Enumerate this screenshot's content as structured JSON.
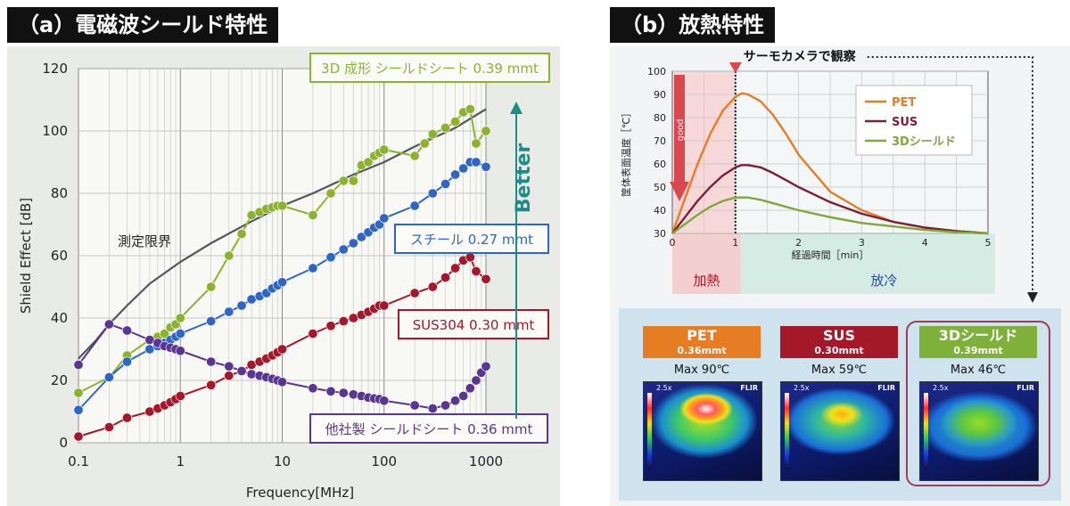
{
  "panel_a": {
    "title": "（a）電磁波シールド特性",
    "better_label": "Better",
    "limit_label": "測定限界"
  },
  "panel_b": {
    "title": "（b）放熱特性",
    "thermo_label": "サーモカメラで観察",
    "good_label": "good",
    "heating_label": "加熱",
    "cooling_label": "放冷",
    "cards": [
      {
        "name": "PET",
        "thickness": "0.36mmt",
        "max": "Max 90℃",
        "color": "#e67c24"
      },
      {
        "name": "SUS",
        "thickness": "0.30mmt",
        "max": "Max 59℃",
        "color": "#a4182a"
      },
      {
        "name": "3Dシールド",
        "thickness": "0.39mmt",
        "max": "Max 46℃",
        "color": "#7fb13a"
      }
    ],
    "flir_label": "FLIR",
    "zoom_label": "2.5x"
  },
  "chart_data": [
    {
      "type": "line",
      "title": "電磁波シールド特性",
      "xlabel": "Frequency[MHz]",
      "ylabel": "Shield Effect [dB]",
      "xscale": "log",
      "xlim": [
        0.1,
        1000
      ],
      "ylim": [
        0,
        120
      ],
      "xticks": [
        0.1,
        1,
        10,
        100,
        1000
      ],
      "xtick_labels": [
        "0.1",
        "1",
        "10",
        "100",
        "1000"
      ],
      "yticks": [
        0,
        20,
        40,
        60,
        80,
        100,
        120
      ],
      "grid": true,
      "series": [
        {
          "name": "測定限界",
          "color": "#555560",
          "marker": false,
          "x": [
            0.1,
            0.15,
            0.2,
            0.3,
            0.5,
            1,
            2,
            5,
            10,
            20,
            50,
            100,
            200,
            500,
            1000
          ],
          "y": [
            27,
            33,
            38,
            44,
            51,
            58,
            64,
            71,
            76,
            80,
            86,
            90,
            95,
            101,
            107
          ]
        },
        {
          "name": "3D 成形 シールドシート 0.39 mmt",
          "color": "#8db230",
          "marker": true,
          "x": [
            0.1,
            0.2,
            0.3,
            0.5,
            0.6,
            0.7,
            0.8,
            0.9,
            1,
            2,
            3,
            4,
            5,
            6,
            7,
            8,
            9,
            10,
            20,
            30,
            40,
            50,
            60,
            70,
            80,
            90,
            100,
            200,
            250,
            300,
            400,
            500,
            600,
            700,
            800,
            1000
          ],
          "y": [
            16,
            21,
            28,
            33,
            34,
            35,
            37,
            38,
            40,
            50,
            60,
            67,
            73,
            74,
            75,
            75.5,
            76,
            76,
            73,
            80,
            84,
            84,
            89,
            90,
            92,
            93,
            94,
            92,
            96,
            99,
            101,
            103,
            106,
            107,
            96,
            100
          ]
        },
        {
          "name": "スチール 0.27 mmt",
          "color": "#2f66c6",
          "marker": true,
          "x": [
            0.1,
            0.2,
            0.3,
            0.5,
            0.6,
            0.7,
            0.8,
            0.9,
            1,
            2,
            3,
            4,
            5,
            6,
            7,
            8,
            9,
            10,
            20,
            30,
            40,
            50,
            60,
            70,
            80,
            90,
            100,
            200,
            300,
            400,
            500,
            600,
            700,
            800,
            1000
          ],
          "y": [
            10.5,
            21,
            26,
            30,
            31,
            32,
            33,
            34,
            35,
            39,
            42,
            44,
            46,
            47,
            48,
            49.5,
            50.5,
            51.5,
            56,
            59.5,
            62,
            64,
            66,
            67.5,
            69,
            70,
            72,
            76,
            80,
            83,
            86,
            88,
            90,
            90,
            88.5
          ]
        },
        {
          "name": "SUS304 0.30 mmt",
          "color": "#a4182a",
          "marker": true,
          "x": [
            0.1,
            0.2,
            0.3,
            0.5,
            0.6,
            0.7,
            0.8,
            0.9,
            1,
            2,
            3,
            4,
            5,
            6,
            7,
            8,
            9,
            10,
            20,
            30,
            40,
            50,
            60,
            70,
            80,
            90,
            100,
            200,
            300,
            400,
            500,
            600,
            700,
            800,
            1000
          ],
          "y": [
            2,
            5,
            8,
            10,
            11,
            12,
            13,
            14,
            15,
            18.5,
            21.5,
            23,
            25,
            26,
            27,
            28,
            29,
            30,
            35,
            37.5,
            39,
            40,
            41,
            42,
            43,
            44,
            44,
            48,
            50,
            53,
            56,
            58.5,
            59.5,
            55,
            52.5
          ]
        },
        {
          "name": "他社製 シールドシート 0.36 mmt",
          "color": "#5a3592",
          "marker": true,
          "x": [
            0.1,
            0.2,
            0.3,
            0.5,
            0.6,
            0.7,
            0.8,
            0.9,
            1,
            2,
            3,
            4,
            5,
            6,
            7,
            8,
            9,
            10,
            20,
            30,
            40,
            50,
            60,
            70,
            80,
            90,
            100,
            200,
            300,
            400,
            500,
            600,
            700,
            800,
            900,
            1000
          ],
          "y": [
            25,
            38,
            36,
            33,
            32,
            31,
            30.5,
            30,
            29.5,
            26,
            24.5,
            23,
            22,
            21.5,
            21,
            20.5,
            20,
            19.5,
            17.5,
            16.5,
            16,
            15.5,
            15,
            14.5,
            14.2,
            14,
            13.5,
            12,
            11,
            12,
            13.5,
            15,
            17.5,
            20,
            22.5,
            24.5
          ]
        }
      ]
    },
    {
      "type": "line",
      "title": "放熱特性",
      "xlabel": "経過時間［min］",
      "ylabel": "筐体表面温度［℃］",
      "xlim": [
        0,
        5
      ],
      "ylim": [
        30,
        100
      ],
      "xticks": [
        0,
        1,
        2,
        3,
        4,
        5
      ],
      "yticks": [
        30,
        40,
        50,
        60,
        70,
        80,
        90,
        100
      ],
      "grid": true,
      "legend": "top-right",
      "series": [
        {
          "name": "PET",
          "color": "#e67c24",
          "x": [
            0,
            0.2,
            0.4,
            0.6,
            0.8,
            1.0,
            1.1,
            1.2,
            1.4,
            1.6,
            1.8,
            2.0,
            2.5,
            3.0,
            3.5,
            4.0,
            4.5,
            5.0
          ],
          "y": [
            30,
            45,
            60,
            73,
            83,
            89,
            90.5,
            90,
            87,
            81,
            73,
            64,
            48,
            40,
            35,
            32.5,
            31,
            30
          ]
        },
        {
          "name": "SUS",
          "color": "#7a1f35",
          "x": [
            0,
            0.2,
            0.4,
            0.6,
            0.8,
            1.0,
            1.1,
            1.2,
            1.4,
            1.6,
            1.8,
            2.0,
            2.5,
            3.0,
            3.5,
            4.0,
            4.5,
            5.0
          ],
          "y": [
            30,
            37,
            44,
            50,
            55,
            58.5,
            59.5,
            59.5,
            58.5,
            56,
            53,
            50,
            43.5,
            38.5,
            35,
            32.5,
            31,
            30
          ]
        },
        {
          "name": "3Dシールド",
          "color": "#7fa83a",
          "x": [
            0,
            0.2,
            0.4,
            0.6,
            0.8,
            1.0,
            1.2,
            1.4,
            1.6,
            2.0,
            2.5,
            3.0,
            3.5,
            4.0,
            4.5,
            5.0
          ],
          "y": [
            30,
            34,
            38,
            41.5,
            44,
            45.5,
            45.5,
            44.5,
            43,
            40,
            37,
            34.5,
            33,
            31.5,
            30.5,
            30
          ]
        }
      ]
    }
  ]
}
